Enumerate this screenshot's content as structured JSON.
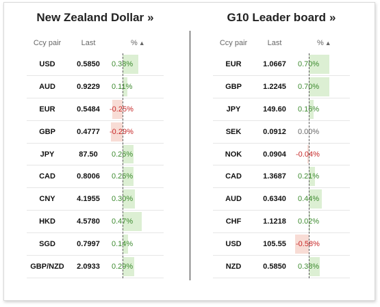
{
  "left_panel": {
    "title": "New Zealand Dollar",
    "chevron": "»",
    "headers": {
      "pair": "Ccy pair",
      "last": "Last",
      "pct": "%",
      "sort_arrow": "▲"
    },
    "scale_max": 0.5,
    "rows": [
      {
        "pair": "USD",
        "last": "0.5850",
        "pct": "0.38%",
        "value": 0.38
      },
      {
        "pair": "AUD",
        "last": "0.9229",
        "pct": "0.11%",
        "value": 0.11
      },
      {
        "pair": "EUR",
        "last": "0.5484",
        "pct": "-0.25%",
        "value": -0.25
      },
      {
        "pair": "GBP",
        "last": "0.4777",
        "pct": "-0.29%",
        "value": -0.29
      },
      {
        "pair": "JPY",
        "last": "87.50",
        "pct": "0.26%",
        "value": 0.26
      },
      {
        "pair": "CAD",
        "last": "0.8006",
        "pct": "0.26%",
        "value": 0.26
      },
      {
        "pair": "CNY",
        "last": "4.1955",
        "pct": "0.30%",
        "value": 0.3
      },
      {
        "pair": "HKD",
        "last": "4.5780",
        "pct": "0.47%",
        "value": 0.47
      },
      {
        "pair": "SGD",
        "last": "0.7997",
        "pct": "0.14%",
        "value": 0.14
      },
      {
        "pair": "GBP/NZD",
        "last": "2.0933",
        "pct": "0.29%",
        "value": 0.29
      }
    ]
  },
  "right_panel": {
    "title": "G10 Leader board",
    "chevron": "»",
    "headers": {
      "pair": "Ccy pair",
      "last": "Last",
      "pct": "%",
      "sort_arrow": "▲"
    },
    "scale_max": 0.7,
    "rows": [
      {
        "pair": "EUR",
        "last": "1.0667",
        "pct": "0.70%",
        "value": 0.7
      },
      {
        "pair": "GBP",
        "last": "1.2245",
        "pct": "0.70%",
        "value": 0.7
      },
      {
        "pair": "JPY",
        "last": "149.60",
        "pct": "0.16%",
        "value": 0.16
      },
      {
        "pair": "SEK",
        "last": "0.0912",
        "pct": "0.00%",
        "value": 0.0
      },
      {
        "pair": "NOK",
        "last": "0.0904",
        "pct": "-0.04%",
        "value": -0.04
      },
      {
        "pair": "CAD",
        "last": "1.3687",
        "pct": "0.21%",
        "value": 0.21
      },
      {
        "pair": "AUD",
        "last": "0.6340",
        "pct": "0.44%",
        "value": 0.44
      },
      {
        "pair": "CHF",
        "last": "1.1218",
        "pct": "0.02%",
        "value": 0.02
      },
      {
        "pair": "USD",
        "last": "105.55",
        "pct": "-0.58%",
        "value": -0.58
      },
      {
        "pair": "NZD",
        "last": "0.5850",
        "pct": "0.38%",
        "value": 0.38
      }
    ]
  },
  "colors": {
    "positive_text": "#3c8a2e",
    "negative_text": "#c62828",
    "positive_bar": "#dcefd3",
    "negative_bar": "#f8dcd5"
  }
}
